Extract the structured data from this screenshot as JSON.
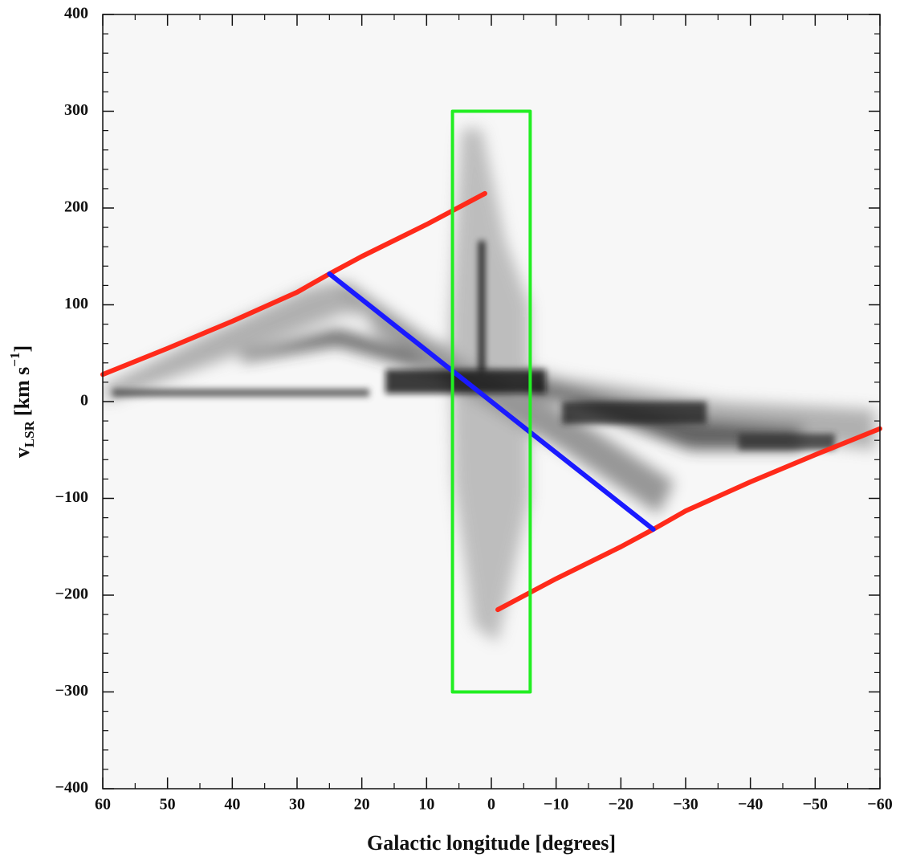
{
  "chart_data": {
    "type": "line",
    "x_label": "Galactic longitude [degrees]",
    "y_label": {
      "main": "v",
      "sub": "LSR",
      "unit": "[km s",
      "sup": "−1",
      "close": "]"
    },
    "xlim": [
      60,
      -60
    ],
    "ylim": [
      -400,
      400
    ],
    "xticks": [
      60,
      50,
      40,
      30,
      20,
      10,
      0,
      {
        "value": -10,
        "label": "−10"
      },
      {
        "value": -20,
        "label": "−20"
      },
      {
        "value": -30,
        "label": "−30"
      },
      {
        "value": -40,
        "label": "−40"
      },
      {
        "value": -50,
        "label": "−50"
      },
      {
        "value": -60,
        "label": "−60"
      }
    ],
    "yticks": [
      {
        "value": -400,
        "label": "−400"
      },
      {
        "value": -300,
        "label": "−300"
      },
      {
        "value": -200,
        "label": "−200"
      },
      {
        "value": -100,
        "label": "−100"
      },
      0,
      100,
      200,
      300,
      400
    ],
    "series": [
      {
        "color": "#ff2a1a",
        "width": 6,
        "x": [
          60,
          50,
          40,
          30,
          25,
          20,
          10,
          1
        ],
        "values": [
          28,
          55,
          83,
          113,
          132,
          150,
          183,
          215
        ]
      },
      {
        "color": "#ff2a1a",
        "width": 6,
        "x": [
          -1,
          -10,
          -20,
          -25,
          -30,
          -40,
          -50,
          -60
        ],
        "values": [
          -215,
          -183,
          -150,
          -132,
          -113,
          -83,
          -55,
          -28
        ]
      },
      {
        "color": "#1a1aff",
        "width": 6,
        "x": [
          25,
          -25
        ],
        "values": [
          132,
          -132
        ]
      },
      {
        "color": "#22ee22",
        "width": 4,
        "x": [
          6,
          -6,
          -6,
          6,
          6
        ],
        "values": [
          300,
          300,
          -300,
          -300,
          300
        ]
      }
    ]
  }
}
